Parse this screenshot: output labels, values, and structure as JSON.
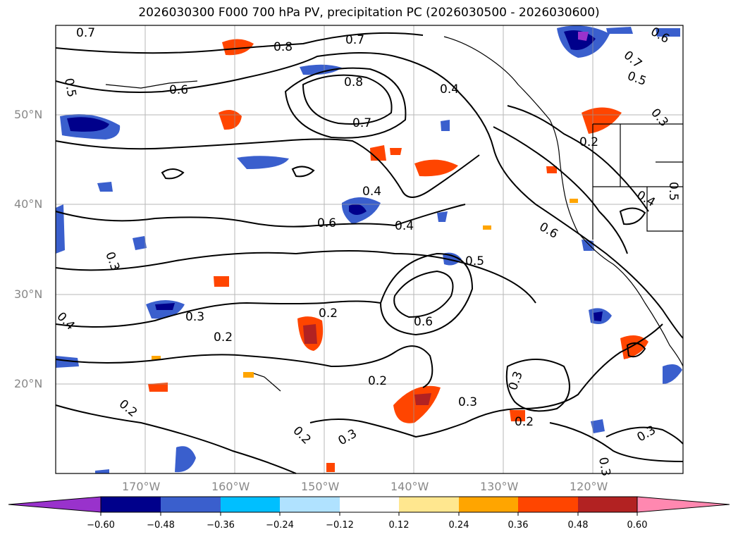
{
  "title": "2026030300 F000 700 hPa PV, precipitation PC (2026030500 - 2026030600)",
  "map": {
    "lat_ticks": [
      "50°N",
      "40°N",
      "30°N",
      "20°N"
    ],
    "lon_ticks": [
      "170°W",
      "160°W",
      "150°W",
      "140°W",
      "130°W",
      "120°W"
    ],
    "contour_labels": [
      "0.7",
      "0.5",
      "0.6",
      "0.8",
      "0.7",
      "0.4",
      "0.8",
      "0.7",
      "0.4",
      "0.6",
      "0.4",
      "0.3",
      "0.3",
      "0.2",
      "0.2",
      "0.4",
      "0.5",
      "0.6",
      "0.3",
      "0.2",
      "0.2",
      "0.6",
      "0.3",
      "0.3",
      "0.2",
      "0.3",
      "0.2",
      "0.3",
      "0.2",
      "0.4",
      "0.3",
      "0.5",
      "0.6",
      "0.5",
      "0.7"
    ]
  },
  "colorbar": {
    "ticks": [
      "−0.60",
      "−0.48",
      "−0.36",
      "−0.24",
      "−0.12",
      "0.12",
      "0.24",
      "0.36",
      "0.48",
      "0.60"
    ],
    "colors": [
      "#9932cc",
      "#00008b",
      "#3a5fcd",
      "#00bfff",
      "#b0e2ff",
      "#ffffff",
      "#ffe78f",
      "#ffa500",
      "#ff4500",
      "#b22222",
      "#ff88b0"
    ]
  }
}
